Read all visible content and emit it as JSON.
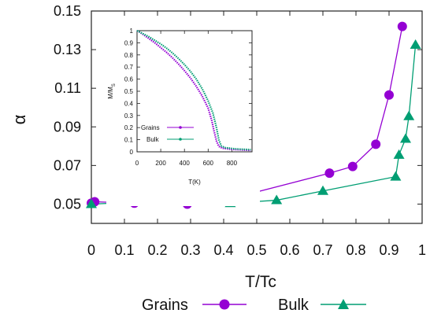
{
  "chart_data": [
    {
      "type": "line",
      "x": [
        0.0,
        0.13,
        0.29,
        0.43,
        0.72,
        0.79,
        0.86,
        0.9,
        0.94
      ],
      "series": [
        {
          "name": "Grains",
          "color": "#9400d3",
          "marker": "circle",
          "points": [
            [
              0.0,
              0.0505
            ],
            [
              0.01,
              0.0512
            ],
            [
              0.13,
              0.0505
            ],
            [
              0.29,
              0.05
            ],
            [
              0.43,
              0.0532
            ],
            [
              0.72,
              0.066
            ],
            [
              0.79,
              0.0695
            ],
            [
              0.86,
              0.081
            ],
            [
              0.9,
              0.1065
            ],
            [
              0.94,
              0.142
            ]
          ]
        },
        {
          "name": "Bulk",
          "color": "#009e73",
          "marker": "triangle",
          "points": [
            [
              0.0,
              0.05
            ],
            [
              0.14,
              0.051
            ],
            [
              0.28,
              0.0525
            ],
            [
              0.42,
              0.0505
            ],
            [
              0.56,
              0.052
            ],
            [
              0.7,
              0.0568
            ],
            [
              0.92,
              0.0642
            ],
            [
              0.93,
              0.0755
            ],
            [
              0.95,
              0.0838
            ],
            [
              0.96,
              0.0955
            ],
            [
              0.98,
              0.1325
            ]
          ]
        }
      ],
      "xlabel": "T/Tc",
      "ylabel": "α",
      "xlim": [
        0,
        1
      ],
      "ylim": [
        0.04,
        0.15
      ],
      "xticks": [
        "0",
        "0.1",
        "0.2",
        "0.3",
        "0.4",
        "0.5",
        "0.6",
        "0.7",
        "0.8",
        "0.9",
        "1"
      ],
      "yticks": [
        "0.05",
        "0.07",
        "0.09",
        "0.11",
        "0.13",
        "0.15"
      ],
      "legend_position": "bottom-center",
      "grid": false
    },
    {
      "type": "line",
      "xlabel": "T(K)",
      "ylabel": "M/M",
      "ylabel_sub": "S",
      "xlim": [
        0,
        970
      ],
      "ylim": [
        0,
        1
      ],
      "xticks": [
        "0",
        "200",
        "400",
        "600",
        "800"
      ],
      "yticks": [
        "0",
        "0.1",
        "0.2",
        "0.3",
        "0.4",
        "0.5",
        "0.6",
        "0.7",
        "0.8",
        "0.9",
        "1"
      ],
      "legend_position": "bottom-left",
      "grid": false,
      "series": [
        {
          "name": "Grains",
          "color": "#9400d3",
          "points": [
            [
              0,
              1.0
            ],
            [
              50,
              0.97
            ],
            [
              100,
              0.935
            ],
            [
              150,
              0.9
            ],
            [
              200,
              0.86
            ],
            [
              250,
              0.82
            ],
            [
              300,
              0.775
            ],
            [
              350,
              0.725
            ],
            [
              400,
              0.67
            ],
            [
              450,
              0.61
            ],
            [
              500,
              0.54
            ],
            [
              550,
              0.46
            ],
            [
              600,
              0.36
            ],
            [
              630,
              0.26
            ],
            [
              650,
              0.17
            ],
            [
              670,
              0.09
            ],
            [
              690,
              0.045
            ],
            [
              720,
              0.03
            ],
            [
              760,
              0.025
            ],
            [
              800,
              0.02
            ],
            [
              850,
              0.018
            ],
            [
              900,
              0.015
            ],
            [
              960,
              0.012
            ]
          ]
        },
        {
          "name": "Bulk",
          "color": "#009e73",
          "points": [
            [
              0,
              1.0
            ],
            [
              50,
              0.975
            ],
            [
              100,
              0.95
            ],
            [
              150,
              0.92
            ],
            [
              200,
              0.89
            ],
            [
              250,
              0.855
            ],
            [
              300,
              0.815
            ],
            [
              350,
              0.77
            ],
            [
              400,
              0.72
            ],
            [
              450,
              0.665
            ],
            [
              500,
              0.6
            ],
            [
              550,
              0.52
            ],
            [
              600,
              0.42
            ],
            [
              640,
              0.32
            ],
            [
              670,
              0.2
            ],
            [
              690,
              0.1
            ],
            [
              710,
              0.05
            ],
            [
              740,
              0.035
            ],
            [
              780,
              0.03
            ],
            [
              820,
              0.025
            ],
            [
              870,
              0.022
            ],
            [
              920,
              0.02
            ],
            [
              960,
              0.018
            ]
          ]
        }
      ]
    }
  ]
}
